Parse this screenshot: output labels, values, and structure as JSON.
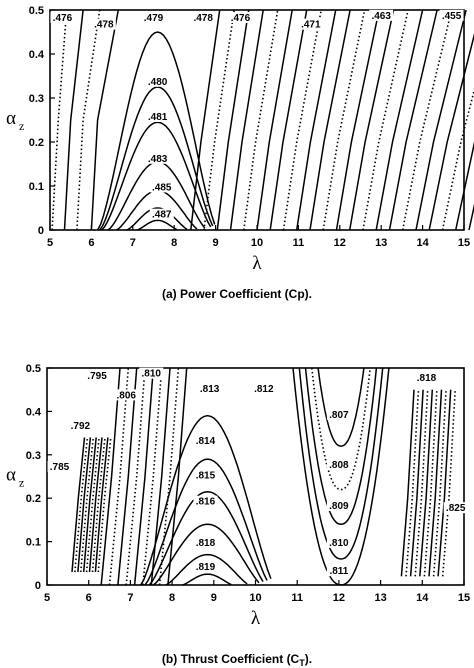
{
  "chart_data": [
    {
      "type": "contour",
      "caption": "(a) Power Coefficient (Cp).",
      "xlabel": "λ",
      "ylabel_main": "α",
      "ylabel_sub": "z",
      "xlim": [
        5,
        15
      ],
      "ylim": [
        0,
        0.5
      ],
      "xticks": [
        "5",
        "6",
        "7",
        "8",
        "9",
        "10",
        "11",
        "12",
        "13",
        "14",
        "15"
      ],
      "yticks": [
        "0",
        "0.1",
        "0.2",
        "0.3",
        "0.4",
        "0.5"
      ],
      "contour_labels": [
        {
          "text": ".476",
          "x": 5.3,
          "y": 0.475
        },
        {
          "text": ".478",
          "x": 6.3,
          "y": 0.46
        },
        {
          "text": ".479",
          "x": 7.5,
          "y": 0.475
        },
        {
          "text": ".478",
          "x": 8.7,
          "y": 0.475
        },
        {
          "text": ".476",
          "x": 9.6,
          "y": 0.475
        },
        {
          "text": ".471",
          "x": 11.3,
          "y": 0.46
        },
        {
          "text": ".463",
          "x": 13.0,
          "y": 0.48
        },
        {
          "text": ".455",
          "x": 14.7,
          "y": 0.48
        },
        {
          "text": ".480",
          "x": 7.6,
          "y": 0.33
        },
        {
          "text": ".481",
          "x": 7.6,
          "y": 0.25
        },
        {
          "text": ".483",
          "x": 7.6,
          "y": 0.155
        },
        {
          "text": ".485",
          "x": 7.7,
          "y": 0.09
        },
        {
          "text": ".487",
          "x": 7.7,
          "y": 0.028
        }
      ]
    },
    {
      "type": "contour",
      "caption": "(b) Thrust Coefficient (C",
      "caption_sub": "T",
      "caption_end": ").",
      "xlabel": "λ",
      "ylabel_main": "α",
      "ylabel_sub": "z",
      "xlim": [
        5,
        15
      ],
      "ylim": [
        0,
        0.5
      ],
      "xticks": [
        "5",
        "6",
        "7",
        "8",
        "9",
        "10",
        "11",
        "12",
        "13",
        "14",
        "15"
      ],
      "yticks": [
        "0",
        "0.1",
        "0.2",
        "0.3",
        "0.4",
        "0.5"
      ],
      "contour_labels": [
        {
          "text": ".785",
          "x": 5.3,
          "y": 0.265
        },
        {
          "text": ".792",
          "x": 5.8,
          "y": 0.36
        },
        {
          "text": ".795",
          "x": 6.2,
          "y": 0.475
        },
        {
          "text": ".806",
          "x": 6.9,
          "y": 0.43
        },
        {
          "text": ".810",
          "x": 7.5,
          "y": 0.48
        },
        {
          "text": ".813",
          "x": 8.9,
          "y": 0.445
        },
        {
          "text": ".812",
          "x": 10.2,
          "y": 0.445
        },
        {
          "text": ".818",
          "x": 14.1,
          "y": 0.47
        },
        {
          "text": ".807",
          "x": 12.0,
          "y": 0.385
        },
        {
          "text": ".814",
          "x": 8.8,
          "y": 0.325
        },
        {
          "text": ".808",
          "x": 12.0,
          "y": 0.27
        },
        {
          "text": ".815",
          "x": 8.8,
          "y": 0.245
        },
        {
          "text": ".816",
          "x": 8.8,
          "y": 0.185
        },
        {
          "text": ".809",
          "x": 12.0,
          "y": 0.175
        },
        {
          "text": ".825",
          "x": 14.8,
          "y": 0.17
        },
        {
          "text": ".818",
          "x": 8.8,
          "y": 0.09
        },
        {
          "text": ".810",
          "x": 12.0,
          "y": 0.09
        },
        {
          "text": ".819",
          "x": 8.8,
          "y": 0.035
        },
        {
          "text": ".811",
          "x": 12.0,
          "y": 0.025
        }
      ]
    }
  ]
}
